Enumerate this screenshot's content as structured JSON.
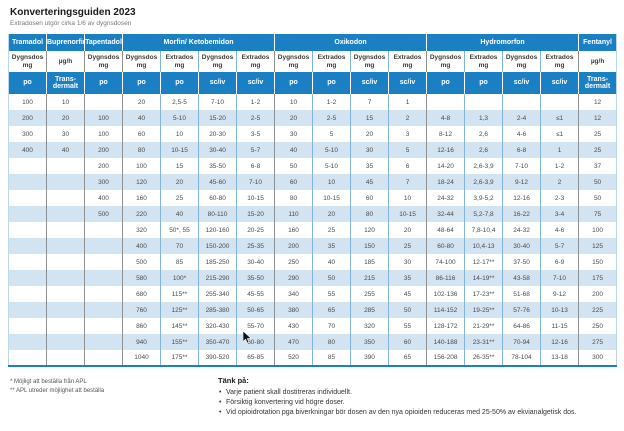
{
  "title": "Konverteringsguiden 2023",
  "subtitle": "Extradosen utgör cirka 1/6 av dygnsdosen",
  "colors": {
    "header_blue": "#1b80c3",
    "row_alt_blue": "#d2e4f1",
    "group_separator": "#8f8f8f",
    "column_separator": "#7fb6d9"
  },
  "table": {
    "groups": [
      {
        "label": "Tramadol",
        "span": 1
      },
      {
        "label": "Buprenorfin",
        "span": 1
      },
      {
        "label": "Tapentadol",
        "span": 1
      },
      {
        "label": "Morfin/ Ketobemidon",
        "span": 4
      },
      {
        "label": "Oxikodon",
        "span": 4
      },
      {
        "label": "Hydromorfon",
        "span": 4
      },
      {
        "label": "Fentanyl",
        "span": 1
      }
    ],
    "units": [
      "Dygnsdos mg",
      "µg/h",
      "Dygnsdos mg",
      "Dygnsdos mg",
      "Extrados mg",
      "Dygnsdos mg",
      "Extrados mg",
      "Dygnsdos mg",
      "Extrados mg",
      "Dygnsdos mg",
      "Extrados mg",
      "Dygnsdos mg",
      "Extrados mg",
      "Dygnsdos mg",
      "Extrados mg",
      "µg/h"
    ],
    "routes": [
      "po",
      "Trans-dermalt",
      "po",
      "po",
      "po",
      "sc/iv",
      "sc/iv",
      "po",
      "po",
      "sc/iv",
      "sc/iv",
      "po",
      "po",
      "sc/iv",
      "sc/iv",
      "Trans-dermalt"
    ],
    "group_boundary_columns": [
      1,
      2,
      3,
      7,
      11,
      15
    ],
    "rows": [
      [
        "100",
        "10",
        "",
        "20",
        "2,5-5",
        "7-10",
        "1-2",
        "10",
        "1-2",
        "7",
        "1",
        "",
        "",
        "",
        "",
        "12"
      ],
      [
        "200",
        "20",
        "100",
        "40",
        "5-10",
        "15-20",
        "2-5",
        "20",
        "2-5",
        "15",
        "2",
        "4-8",
        "1,3",
        "2-4",
        "≤1",
        "12"
      ],
      [
        "300",
        "30",
        "100",
        "60",
        "10",
        "20-30",
        "3-5",
        "30",
        "5",
        "20",
        "3",
        "8-12",
        "2,6",
        "4-6",
        "≤1",
        "25"
      ],
      [
        "400",
        "40",
        "200",
        "80",
        "10-15",
        "30-40",
        "5-7",
        "40",
        "5-10",
        "30",
        "5",
        "12-16",
        "2,6",
        "6-8",
        "1",
        "25"
      ],
      [
        "",
        "",
        "200",
        "100",
        "15",
        "35-50",
        "6-8",
        "50",
        "5-10",
        "35",
        "6",
        "14-20",
        "2,6-3,9",
        "7-10",
        "1-2",
        "37"
      ],
      [
        "",
        "",
        "300",
        "120",
        "20",
        "45-60",
        "7-10",
        "60",
        "10",
        "45",
        "7",
        "18-24",
        "2,6-3,9",
        "9-12",
        "2",
        "50"
      ],
      [
        "",
        "",
        "400",
        "160",
        "25",
        "60-80",
        "10-15",
        "80",
        "10-15",
        "60",
        "10",
        "24-32",
        "3,9-5,2",
        "12-16",
        "2-3",
        "50"
      ],
      [
        "",
        "",
        "500",
        "220",
        "40",
        "80-110",
        "15-20",
        "110",
        "20",
        "80",
        "10-15",
        "32-44",
        "5,2-7,8",
        "16-22",
        "3-4",
        "75"
      ],
      [
        "",
        "",
        "",
        "320",
        "50*, 55",
        "120-160",
        "20-25",
        "160",
        "25",
        "120",
        "20",
        "48-64",
        "7,8-10,4",
        "24-32",
        "4-6",
        "100"
      ],
      [
        "",
        "",
        "",
        "400",
        "70",
        "150-200",
        "25-35",
        "200",
        "35",
        "150",
        "25",
        "60-80",
        "10,4-13",
        "30-40",
        "5-7",
        "125"
      ],
      [
        "",
        "",
        "",
        "500",
        "85",
        "185-250",
        "30-40",
        "250",
        "40",
        "185",
        "30",
        "74-100",
        "12-17**",
        "37-50",
        "6-9",
        "150"
      ],
      [
        "",
        "",
        "",
        "580",
        "100*",
        "215-290",
        "35-50",
        "290",
        "50",
        "215",
        "35",
        "86-116",
        "14-19**",
        "43-58",
        "7-10",
        "175"
      ],
      [
        "",
        "",
        "",
        "680",
        "115**",
        "255-340",
        "45-55",
        "340",
        "55",
        "255",
        "45",
        "102-136",
        "17-23**",
        "51-68",
        "9-12",
        "200"
      ],
      [
        "",
        "",
        "",
        "760",
        "125**",
        "285-380",
        "50-65",
        "380",
        "65",
        "285",
        "50",
        "114-152",
        "19-25**",
        "57-76",
        "10-13",
        "225"
      ],
      [
        "",
        "",
        "",
        "860",
        "145**",
        "320-430",
        "55-70",
        "430",
        "70",
        "320",
        "55",
        "128-172",
        "21-29**",
        "64-86",
        "11-15",
        "250"
      ],
      [
        "",
        "",
        "",
        "940",
        "155**",
        "350-470",
        "60-80",
        "470",
        "80",
        "350",
        "60",
        "140-188",
        "23-31**",
        "70-94",
        "12-16",
        "275"
      ],
      [
        "",
        "",
        "",
        "1040",
        "175**",
        "390-520",
        "65-85",
        "520",
        "85",
        "390",
        "65",
        "156-208",
        "26-35**",
        "78-104",
        "13-18",
        "300"
      ]
    ]
  },
  "footnotes": [
    "* Möjligt att beställa från APL",
    "** APL utreder möjlighet att beställa"
  ],
  "think_box": {
    "title": "Tänk på:",
    "bullets": [
      "Varje patient skall dostitreras individuellt.",
      "Försiktig konvertering vid högre doser.",
      "Vid opioidrotation pga biverkningar bör dosen av den nya opioiden reduceras med 25-50% av ekvianalgetisk dos."
    ]
  }
}
